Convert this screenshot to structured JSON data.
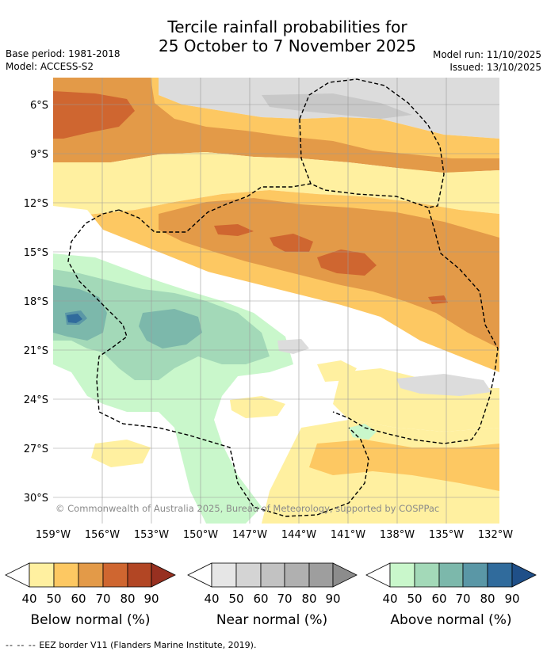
{
  "title": {
    "line1": "Tercile rainfall probabilities for",
    "line2": "25 October to 7 November 2025"
  },
  "meta": {
    "base_period": "Base period: 1981-2018",
    "model": "Model: ACCESS-S2",
    "model_run": "Model run: 11/10/2025",
    "issued": "Issued: 13/10/2025"
  },
  "map": {
    "lat_labels": [
      "6°S",
      "9°S",
      "12°S",
      "15°S",
      "18°S",
      "21°S",
      "24°S",
      "27°S",
      "30°S"
    ],
    "lon_labels": [
      "159°W",
      "156°W",
      "153°W",
      "150°W",
      "147°W",
      "144°W",
      "141°W",
      "138°W",
      "135°W",
      "132°W"
    ],
    "copyright": "© Commonwealth of Australia 2025, Bureau of Meteorology, supported by COSPPac"
  },
  "legend": {
    "ticks": [
      "40",
      "50",
      "60",
      "70",
      "80",
      "90"
    ],
    "below": {
      "label": "Below normal (%)",
      "colors": [
        "#fff0a0",
        "#fdc862",
        "#e39a48",
        "#cf6630",
        "#b24624",
        "#973020"
      ]
    },
    "near": {
      "label": "Near normal (%)",
      "colors": [
        "#e6e6e6",
        "#d4d4d4",
        "#c2c2c2",
        "#b0b0b0",
        "#9e9e9e",
        "#8c8c8c"
      ]
    },
    "above": {
      "label": "Above normal (%)",
      "colors": [
        "#c9f7cb",
        "#a3d9b8",
        "#7cb8ab",
        "#5a97a6",
        "#306b9c",
        "#1f4f88"
      ]
    }
  },
  "footnote": {
    "symbol": "-- -- --",
    "text": "EEZ border V11 (Flanders Marine Institute, 2019)."
  }
}
